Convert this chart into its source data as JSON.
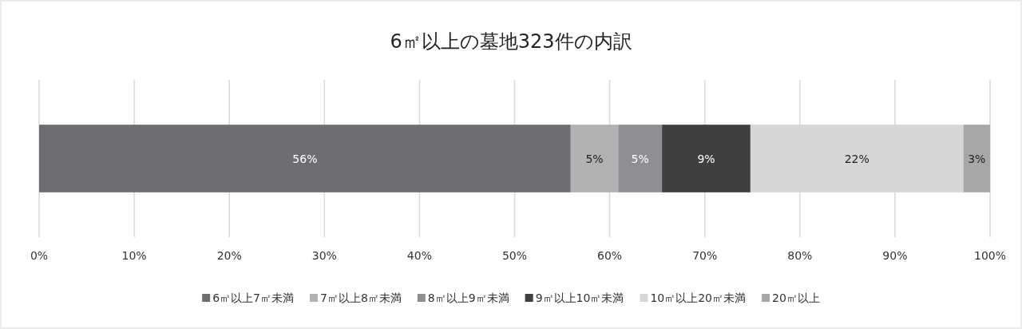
{
  "chart_data": {
    "type": "bar",
    "title": "6㎡以上の墓地323件の内訳",
    "orientation": "horizontal",
    "stacked": true,
    "categories": [
      null
    ],
    "series": [
      {
        "name": "6㎡以上7㎡未満",
        "color": "#6d6e71",
        "values": [
          55.9
        ],
        "value_labels": [
          "56%"
        ]
      },
      {
        "name": "7㎡以上8㎡未満",
        "color": "#b1b2b4",
        "values": [
          5.0
        ],
        "value_labels": [
          "5%"
        ]
      },
      {
        "name": "8㎡以上9㎡未満",
        "color": "#8e8f92",
        "values": [
          4.6
        ],
        "value_labels": [
          "5%"
        ]
      },
      {
        "name": "9㎡以上10㎡未満",
        "color": "#3f3f3f",
        "values": [
          9.3
        ],
        "value_labels": [
          "9%"
        ]
      },
      {
        "name": "10㎡以上20㎡未満",
        "color": "#d5d6d8",
        "values": [
          22.4
        ],
        "value_labels": [
          "22%"
        ]
      },
      {
        "name": "20㎡以上",
        "color": "#a6a7a9",
        "values": [
          2.8
        ],
        "value_labels": [
          "3%"
        ]
      }
    ],
    "xlim": [
      0,
      100
    ],
    "xticks": [
      {
        "value": 0,
        "label": "0%"
      },
      {
        "value": 10,
        "label": "10%"
      },
      {
        "value": 20,
        "label": "20%"
      },
      {
        "value": 30,
        "label": "30%"
      },
      {
        "value": 40,
        "label": "40%"
      },
      {
        "value": 50,
        "label": "50%"
      },
      {
        "value": 60,
        "label": "60%"
      },
      {
        "value": 70,
        "label": "70%"
      },
      {
        "value": 80,
        "label": "80%"
      },
      {
        "value": 90,
        "label": "90%"
      },
      {
        "value": 100,
        "label": "100%"
      }
    ],
    "grid": "x",
    "legend": "bottom",
    "tick_labels": "x"
  }
}
